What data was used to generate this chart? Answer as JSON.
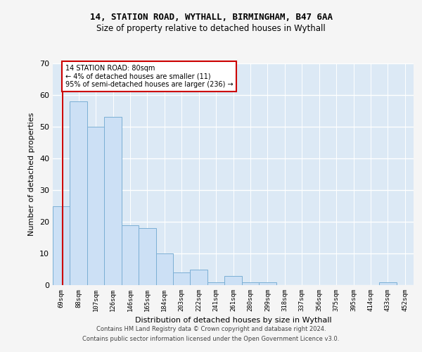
{
  "title1": "14, STATION ROAD, WYTHALL, BIRMINGHAM, B47 6AA",
  "title2": "Size of property relative to detached houses in Wythall",
  "xlabel": "Distribution of detached houses by size in Wythall",
  "ylabel": "Number of detached properties",
  "categories": [
    "69sqm",
    "88sqm",
    "107sqm",
    "126sqm",
    "146sqm",
    "165sqm",
    "184sqm",
    "203sqm",
    "222sqm",
    "241sqm",
    "261sqm",
    "280sqm",
    "299sqm",
    "318sqm",
    "337sqm",
    "356sqm",
    "375sqm",
    "395sqm",
    "414sqm",
    "433sqm",
    "452sqm"
  ],
  "values": [
    25,
    58,
    50,
    53,
    19,
    18,
    10,
    4,
    5,
    1,
    3,
    1,
    1,
    0,
    0,
    0,
    0,
    0,
    0,
    1,
    0
  ],
  "bar_color": "#cce0f5",
  "bar_edge_color": "#7bafd4",
  "annotation_text_line1": "14 STATION ROAD: 80sqm",
  "annotation_text_line2": "← 4% of detached houses are smaller (11)",
  "annotation_text_line3": "95% of semi-detached houses are larger (236) →",
  "annotation_box_color": "#ffffff",
  "annotation_box_edge_color": "#cc0000",
  "vline_color": "#cc0000",
  "ylim": [
    0,
    70
  ],
  "yticks": [
    0,
    10,
    20,
    30,
    40,
    50,
    60,
    70
  ],
  "fig_bg_color": "#f5f5f5",
  "plot_bg_color": "#dce9f5",
  "grid_color": "#ffffff",
  "footer1": "Contains HM Land Registry data © Crown copyright and database right 2024.",
  "footer2": "Contains public sector information licensed under the Open Government Licence v3.0."
}
